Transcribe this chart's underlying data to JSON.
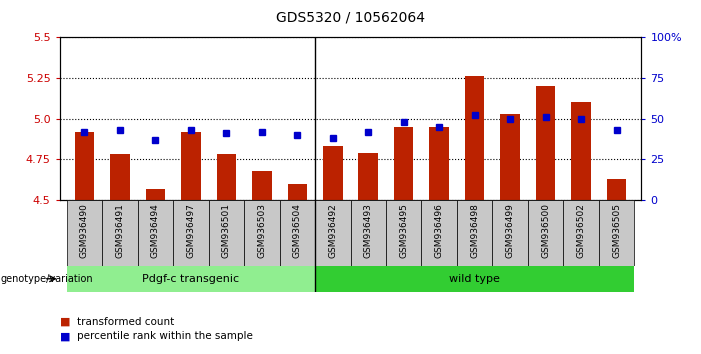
{
  "title": "GDS5320 / 10562064",
  "samples": [
    "GSM936490",
    "GSM936491",
    "GSM936494",
    "GSM936497",
    "GSM936501",
    "GSM936503",
    "GSM936504",
    "GSM936492",
    "GSM936493",
    "GSM936495",
    "GSM936496",
    "GSM936498",
    "GSM936499",
    "GSM936500",
    "GSM936502",
    "GSM936505"
  ],
  "transformed_count": [
    4.92,
    4.78,
    4.57,
    4.92,
    4.78,
    4.68,
    4.6,
    4.83,
    4.79,
    4.95,
    4.95,
    5.26,
    5.03,
    5.2,
    5.1,
    4.63
  ],
  "percentile_rank": [
    42,
    43,
    37,
    43,
    41,
    42,
    40,
    38,
    42,
    48,
    45,
    52,
    50,
    51,
    50,
    43
  ],
  "group1_count": 7,
  "group1_label": "Pdgf-c transgenic",
  "group2_label": "wild type",
  "ylim_left": [
    4.5,
    5.5
  ],
  "ylim_right": [
    0,
    100
  ],
  "yticks_left": [
    4.5,
    4.75,
    5.0,
    5.25,
    5.5
  ],
  "yticks_right": [
    0,
    25,
    50,
    75,
    100
  ],
  "bar_color": "#bb2200",
  "dot_color": "#0000cc",
  "bar_width": 0.55,
  "group1_color": "#90ee90",
  "group2_color": "#32cd32",
  "legend_bar_label": "transformed count",
  "legend_dot_label": "percentile rank within the sample",
  "left_label_color": "#cc0000",
  "right_label_color": "#0000cc",
  "tick_bg_color": "#c8c8c8"
}
